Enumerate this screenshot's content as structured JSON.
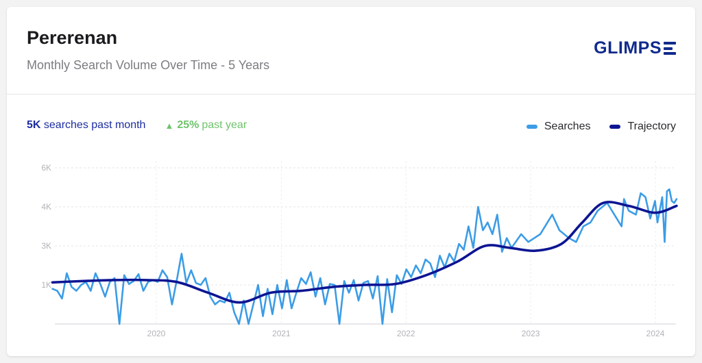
{
  "header": {
    "title": "Pererenan",
    "subtitle": "Monthly Search Volume Over Time - 5 Years",
    "logo_text": "GLIMPS"
  },
  "stats": {
    "searches_value": "5K",
    "searches_label": "searches past month",
    "growth_icon": "triangle-up-icon",
    "growth_value": "25%",
    "growth_label": "past year"
  },
  "legend": [
    {
      "label": "Searches",
      "color": "#3b9ce6"
    },
    {
      "label": "Trajectory",
      "color": "#0d1592"
    }
  ],
  "colors": {
    "brand": "#102a8c",
    "positive": "#6fc36b",
    "searches": "#3b9ce6",
    "trajectory": "#0d1592"
  },
  "chart_data": {
    "type": "line",
    "x_start": "2019-03",
    "x_end": "2024-02",
    "x_tick_labels": [
      "2020",
      "2021",
      "2022",
      "2023",
      "2024"
    ],
    "y_tick_labels": [
      "1K",
      "3K",
      "4K",
      "6K"
    ],
    "grid": true,
    "legend_position": "top-right",
    "series": [
      {
        "name": "Searches",
        "points": [
          [
            "2019-03-03",
            900
          ],
          [
            "2019-03-17",
            850
          ],
          [
            "2019-03-31",
            650
          ],
          [
            "2019-04-14",
            1600
          ],
          [
            "2019-04-28",
            950
          ],
          [
            "2019-05-12",
            850
          ],
          [
            "2019-05-26",
            1000
          ],
          [
            "2019-06-09",
            1150
          ],
          [
            "2019-06-23",
            850
          ],
          [
            "2019-07-07",
            1600
          ],
          [
            "2019-07-21",
            1050
          ],
          [
            "2019-08-04",
            700
          ],
          [
            "2019-08-18",
            1150
          ],
          [
            "2019-09-01",
            1350
          ],
          [
            "2019-09-15",
            0
          ],
          [
            "2019-09-29",
            1500
          ],
          [
            "2019-10-13",
            1050
          ],
          [
            "2019-10-27",
            1200
          ],
          [
            "2019-11-10",
            1550
          ],
          [
            "2019-11-24",
            850
          ],
          [
            "2019-12-08",
            1150
          ],
          [
            "2019-12-22",
            1250
          ],
          [
            "2020-01-05",
            1150
          ],
          [
            "2020-01-19",
            1750
          ],
          [
            "2020-02-02",
            1400
          ],
          [
            "2020-02-16",
            500
          ],
          [
            "2020-03-01",
            1250
          ],
          [
            "2020-03-15",
            2600
          ],
          [
            "2020-03-29",
            1100
          ],
          [
            "2020-04-12",
            1750
          ],
          [
            "2020-04-26",
            1100
          ],
          [
            "2020-05-10",
            1000
          ],
          [
            "2020-05-24",
            1350
          ],
          [
            "2020-06-07",
            700
          ],
          [
            "2020-06-21",
            500
          ],
          [
            "2020-07-05",
            600
          ],
          [
            "2020-07-19",
            550
          ],
          [
            "2020-08-02",
            800
          ],
          [
            "2020-08-16",
            300
          ],
          [
            "2020-08-30",
            0
          ],
          [
            "2020-09-13",
            600
          ],
          [
            "2020-09-27",
            0
          ],
          [
            "2020-10-11",
            500
          ],
          [
            "2020-10-25",
            1000
          ],
          [
            "2020-11-08",
            200
          ],
          [
            "2020-11-22",
            900
          ],
          [
            "2020-12-06",
            250
          ],
          [
            "2020-12-20",
            1000
          ],
          [
            "2021-01-03",
            400
          ],
          [
            "2021-01-17",
            1250
          ],
          [
            "2021-01-31",
            400
          ],
          [
            "2021-02-14",
            800
          ],
          [
            "2021-02-28",
            1350
          ],
          [
            "2021-03-14",
            1050
          ],
          [
            "2021-03-28",
            1650
          ],
          [
            "2021-04-11",
            700
          ],
          [
            "2021-04-25",
            1350
          ],
          [
            "2021-05-09",
            500
          ],
          [
            "2021-05-23",
            1050
          ],
          [
            "2021-06-06",
            1000
          ],
          [
            "2021-06-20",
            0
          ],
          [
            "2021-07-04",
            1200
          ],
          [
            "2021-07-18",
            800
          ],
          [
            "2021-08-01",
            1250
          ],
          [
            "2021-08-15",
            600
          ],
          [
            "2021-08-29",
            1100
          ],
          [
            "2021-09-12",
            1200
          ],
          [
            "2021-09-26",
            650
          ],
          [
            "2021-10-10",
            1450
          ],
          [
            "2021-10-24",
            0
          ],
          [
            "2021-11-07",
            1300
          ],
          [
            "2021-11-21",
            300
          ],
          [
            "2021-12-05",
            1500
          ],
          [
            "2021-12-19",
            1050
          ],
          [
            "2022-01-02",
            1800
          ],
          [
            "2022-01-16",
            1400
          ],
          [
            "2022-01-30",
            2000
          ],
          [
            "2022-02-13",
            1600
          ],
          [
            "2022-02-27",
            2300
          ],
          [
            "2022-03-13",
            2100
          ],
          [
            "2022-03-27",
            1400
          ],
          [
            "2022-04-10",
            2500
          ],
          [
            "2022-04-24",
            1900
          ],
          [
            "2022-05-08",
            2600
          ],
          [
            "2022-05-22",
            2200
          ],
          [
            "2022-06-05",
            3050
          ],
          [
            "2022-06-19",
            2800
          ],
          [
            "2022-07-03",
            3500
          ],
          [
            "2022-07-17",
            2900
          ],
          [
            "2022-07-31",
            4000
          ],
          [
            "2022-08-14",
            3400
          ],
          [
            "2022-08-28",
            3600
          ],
          [
            "2022-09-11",
            3300
          ],
          [
            "2022-09-25",
            3800
          ],
          [
            "2022-10-09",
            2700
          ],
          [
            "2022-10-23",
            3200
          ],
          [
            "2022-11-06",
            2900
          ],
          [
            "2022-12-04",
            3300
          ],
          [
            "2022-12-25",
            3100
          ],
          [
            "2023-01-29",
            3300
          ],
          [
            "2023-03-05",
            3800
          ],
          [
            "2023-03-26",
            3400
          ],
          [
            "2023-04-23",
            3200
          ],
          [
            "2023-05-14",
            3100
          ],
          [
            "2023-06-04",
            3500
          ],
          [
            "2023-06-25",
            3600
          ],
          [
            "2023-07-16",
            3900
          ],
          [
            "2023-08-13",
            4200
          ],
          [
            "2023-09-03",
            3800
          ],
          [
            "2023-09-24",
            3500
          ],
          [
            "2023-10-01",
            4400
          ],
          [
            "2023-10-15",
            3900
          ],
          [
            "2023-11-05",
            3800
          ],
          [
            "2023-11-19",
            4700
          ],
          [
            "2023-12-03",
            4500
          ],
          [
            "2023-12-17",
            3700
          ],
          [
            "2023-12-31",
            4300
          ],
          [
            "2024-01-07",
            3600
          ],
          [
            "2024-01-21",
            4500
          ],
          [
            "2024-01-28",
            3100
          ],
          [
            "2024-02-04",
            4800
          ],
          [
            "2024-02-11",
            4900
          ],
          [
            "2024-02-18",
            4300
          ],
          [
            "2024-02-25",
            4200
          ],
          [
            "2024-03-03",
            4400
          ]
        ]
      },
      {
        "name": "Trajectory",
        "points": [
          [
            "2019-03-03",
            1130
          ],
          [
            "2019-06-01",
            1200
          ],
          [
            "2019-09-01",
            1250
          ],
          [
            "2019-12-01",
            1250
          ],
          [
            "2020-03-01",
            1150
          ],
          [
            "2020-06-01",
            800
          ],
          [
            "2020-09-01",
            550
          ],
          [
            "2020-12-01",
            800
          ],
          [
            "2021-03-01",
            850
          ],
          [
            "2021-06-01",
            950
          ],
          [
            "2021-09-01",
            1000
          ],
          [
            "2021-12-01",
            1050
          ],
          [
            "2022-03-01",
            1500
          ],
          [
            "2022-06-01",
            2200
          ],
          [
            "2022-08-20",
            3000
          ],
          [
            "2022-11-01",
            2900
          ],
          [
            "2023-01-15",
            2750
          ],
          [
            "2023-04-01",
            3050
          ],
          [
            "2023-06-01",
            3600
          ],
          [
            "2023-08-01",
            4200
          ],
          [
            "2023-10-15",
            4050
          ],
          [
            "2024-01-01",
            3850
          ],
          [
            "2024-03-03",
            4050
          ]
        ]
      }
    ]
  }
}
